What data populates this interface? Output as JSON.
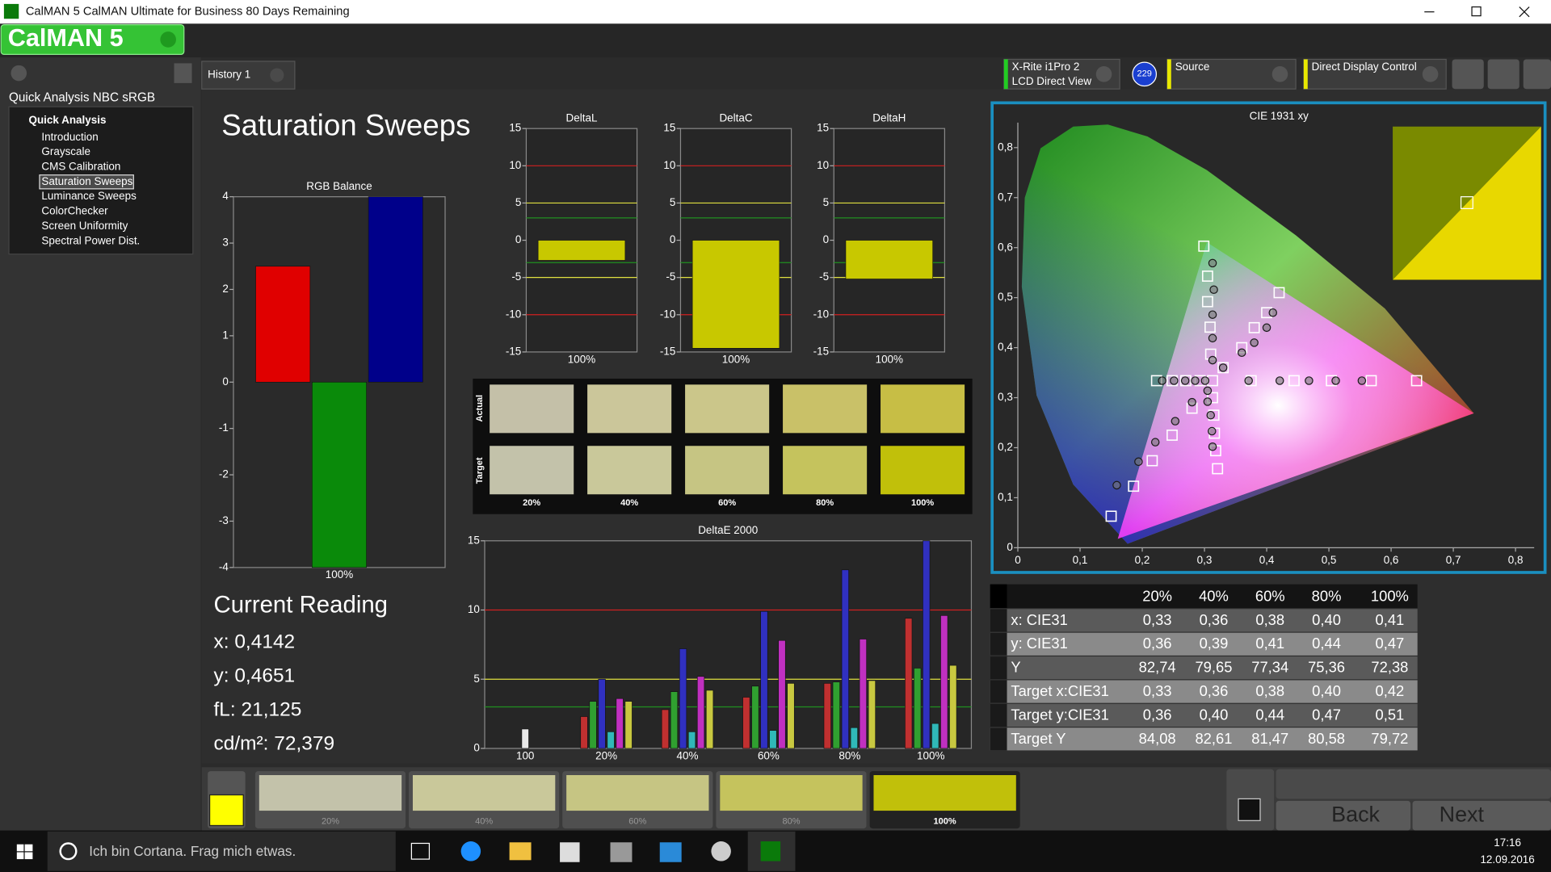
{
  "window": {
    "title": "CalMAN 5 CalMAN Ultimate for Business 80 Days Remaining",
    "logo": "CalMAN 5"
  },
  "tabs": [
    "History 1"
  ],
  "devices": [
    {
      "label": "X-Rite i1Pro 2",
      "sub": "LCD Direct View",
      "badge": "229",
      "color": "#22cc22"
    },
    {
      "label": "Source",
      "color": "#e8e800"
    },
    {
      "label": "Direct Display Control",
      "color": "#e8e800"
    }
  ],
  "sidebar": {
    "title": "Quick Analysis NBC sRGB",
    "root": "Quick Analysis",
    "items": [
      "Introduction",
      "Grayscale",
      "CMS Calibration",
      "Saturation Sweeps",
      "Luminance Sweeps",
      "ColorChecker",
      "Screen Uniformity",
      "Spectral Power Dist."
    ],
    "selected": 3
  },
  "page_title": "Saturation Sweeps",
  "chart_data": [
    {
      "type": "bar",
      "title": "RGB Balance",
      "categories": [
        "100%"
      ],
      "series": [
        {
          "color": "#e00000",
          "values": [
            2.5
          ]
        },
        {
          "color": "#0a8a0a",
          "values": [
            -4
          ]
        },
        {
          "color": "#00008a",
          "values": [
            4
          ]
        }
      ],
      "ylim": [
        -4,
        4
      ],
      "yticks": [
        -4,
        -3,
        -2,
        -1,
        0,
        1,
        2,
        3,
        4
      ]
    },
    {
      "type": "bar",
      "title": "DeltaL",
      "categories": [
        "100%"
      ],
      "series": [
        {
          "color": "#c8c800",
          "values": [
            -2.7
          ]
        }
      ],
      "ylim": [
        -15,
        15
      ],
      "yticks": [
        -15,
        -10,
        -5,
        0,
        5,
        10,
        15
      ],
      "thresholds": [
        {
          "value": 10,
          "color": "#d02020"
        },
        {
          "value": -10,
          "color": "#d02020"
        },
        {
          "value": 5,
          "color": "#e0e040"
        },
        {
          "value": -5,
          "color": "#e0e040"
        },
        {
          "value": 3,
          "color": "#209020"
        },
        {
          "value": -3,
          "color": "#209020"
        }
      ]
    },
    {
      "type": "bar",
      "title": "DeltaC",
      "categories": [
        "100%"
      ],
      "series": [
        {
          "color": "#c8c800",
          "values": [
            -14.5
          ]
        }
      ],
      "ylim": [
        -15,
        15
      ],
      "yticks": [
        -15,
        -10,
        -5,
        0,
        5,
        10,
        15
      ],
      "thresholds": [
        {
          "value": 10,
          "color": "#d02020"
        },
        {
          "value": -10,
          "color": "#d02020"
        },
        {
          "value": 5,
          "color": "#e0e040"
        },
        {
          "value": -5,
          "color": "#e0e040"
        },
        {
          "value": 3,
          "color": "#209020"
        },
        {
          "value": -3,
          "color": "#209020"
        }
      ]
    },
    {
      "type": "bar",
      "title": "DeltaH",
      "categories": [
        "100%"
      ],
      "series": [
        {
          "color": "#c8c800",
          "values": [
            -5.2
          ]
        }
      ],
      "ylim": [
        -15,
        15
      ],
      "yticks": [
        -15,
        -10,
        -5,
        0,
        5,
        10,
        15
      ],
      "thresholds": [
        {
          "value": 10,
          "color": "#d02020"
        },
        {
          "value": -10,
          "color": "#d02020"
        },
        {
          "value": 5,
          "color": "#e0e040"
        },
        {
          "value": -5,
          "color": "#e0e040"
        },
        {
          "value": 3,
          "color": "#209020"
        },
        {
          "value": -3,
          "color": "#209020"
        }
      ]
    },
    {
      "type": "bar",
      "title": "DeltaE 2000",
      "categories": [
        "100",
        "20%",
        "40%",
        "60%",
        "80%",
        "100%"
      ],
      "series": [
        {
          "color": "#e8e8e8",
          "values": [
            1.4,
            null,
            null,
            null,
            null,
            null
          ]
        },
        {
          "color": "#c03030",
          "values": [
            null,
            2.3,
            2.8,
            3.7,
            4.7,
            9.4
          ]
        },
        {
          "color": "#30a030",
          "values": [
            null,
            3.4,
            4.1,
            4.5,
            4.8,
            5.8
          ]
        },
        {
          "color": "#3030c0",
          "values": [
            null,
            5.0,
            7.2,
            9.9,
            12.9,
            15.0
          ]
        },
        {
          "color": "#30b8b8",
          "values": [
            null,
            1.2,
            1.2,
            1.3,
            1.5,
            1.8
          ]
        },
        {
          "color": "#c030c0",
          "values": [
            null,
            3.6,
            5.2,
            7.8,
            7.9,
            9.6
          ]
        },
        {
          "color": "#c8c840",
          "values": [
            null,
            3.4,
            4.2,
            4.7,
            4.9,
            6.0
          ]
        }
      ],
      "ylim": [
        0,
        15
      ],
      "yticks": [
        0,
        5,
        10,
        15
      ],
      "thresholds": [
        {
          "value": 10,
          "color": "#d02020"
        },
        {
          "value": 5,
          "color": "#e0e040"
        },
        {
          "value": 3,
          "color": "#209020"
        }
      ]
    },
    {
      "type": "scatter",
      "title": "CIE 1931 xy",
      "xlim": [
        0,
        0.83
      ],
      "ylim": [
        0,
        0.85
      ],
      "xticks": [
        0,
        {
          "value": 0.1,
          "label": "0,1"
        },
        {
          "value": 0.2,
          "label": "0,2"
        },
        {
          "value": 0.3,
          "label": "0,3"
        },
        {
          "value": 0.4,
          "label": "0,4"
        },
        {
          "value": 0.5,
          "label": "0,5"
        },
        {
          "value": 0.6,
          "label": "0,6"
        },
        {
          "value": 0.7,
          "label": "0,7"
        },
        {
          "value": 0.8,
          "label": "0,8"
        }
      ],
      "yticks": [
        0,
        {
          "value": 0.1,
          "label": "0,1"
        },
        {
          "value": 0.2,
          "label": "0,2"
        },
        {
          "value": 0.3,
          "label": "0,3"
        },
        {
          "value": 0.4,
          "label": "0,4"
        },
        {
          "value": 0.5,
          "label": "0,5"
        },
        {
          "value": 0.6,
          "label": "0,6"
        },
        {
          "value": 0.7,
          "label": "0,7"
        },
        {
          "value": 0.8,
          "label": "0,8"
        }
      ],
      "series": [
        {
          "marker": "square",
          "color": "#ffffff",
          "x": [
            0.15,
            0.186,
            0.216,
            0.248,
            0.28,
            0.299,
            0.305,
            0.305,
            0.309,
            0.31,
            0.641,
            0.568,
            0.504,
            0.444,
            0.375,
            0.33,
            0.36,
            0.38,
            0.4,
            0.42,
            0.223,
            0.248,
            0.27,
            0.293,
            0.321,
            0.318,
            0.316,
            0.315,
            0.313,
            0.313
          ],
          "y": [
            0.063,
            0.123,
            0.174,
            0.225,
            0.279,
            0.603,
            0.543,
            0.492,
            0.441,
            0.387,
            0.334,
            0.334,
            0.334,
            0.334,
            0.334,
            0.36,
            0.4,
            0.44,
            0.47,
            0.51,
            0.334,
            0.334,
            0.334,
            0.334,
            0.158,
            0.194,
            0.229,
            0.265,
            0.3,
            0.334
          ]
        },
        {
          "marker": "circle",
          "color": "#1a1a1a",
          "x": [
            0.159,
            0.194,
            0.221,
            0.253,
            0.28,
            0.313,
            0.315,
            0.313,
            0.313,
            0.313,
            0.371,
            0.421,
            0.468,
            0.511,
            0.553,
            0.33,
            0.36,
            0.38,
            0.4,
            0.41,
            0.232,
            0.251,
            0.269,
            0.285,
            0.301,
            0.313,
            0.312,
            0.31,
            0.305,
            0.305
          ],
          "y": [
            0.125,
            0.172,
            0.211,
            0.253,
            0.291,
            0.569,
            0.516,
            0.466,
            0.419,
            0.375,
            0.334,
            0.334,
            0.334,
            0.334,
            0.334,
            0.36,
            0.39,
            0.41,
            0.44,
            0.47,
            0.334,
            0.334,
            0.334,
            0.334,
            0.334,
            0.202,
            0.233,
            0.265,
            0.292,
            0.314
          ]
        }
      ]
    }
  ],
  "swatches": {
    "row_labels": [
      "Actual",
      "Target"
    ],
    "columns": [
      "20%",
      "40%",
      "60%",
      "80%",
      "100%"
    ],
    "actual": [
      "#c4c0a8",
      "#cbc69a",
      "#cbc68a",
      "#c9c168",
      "#c7be45"
    ],
    "target": [
      "#c3c2aa",
      "#c9c89a",
      "#c6c583",
      "#c5c35d",
      "#c1c00a"
    ]
  },
  "current_reading": {
    "title": "Current Reading",
    "lines": [
      "x: 0,4142",
      "y: 0,4651",
      "fL: 21,125",
      "cd/m²: 72,379"
    ]
  },
  "table": {
    "header": [
      "20%",
      "40%",
      "60%",
      "80%",
      "100%"
    ],
    "rows": [
      [
        "x: CIE31",
        "0,33",
        "0,36",
        "0,38",
        "0,40",
        "0,41"
      ],
      [
        "y: CIE31",
        "0,36",
        "0,39",
        "0,41",
        "0,44",
        "0,47"
      ],
      [
        "Y",
        "82,74",
        "79,65",
        "77,34",
        "75,36",
        "72,38"
      ],
      [
        "Target x:CIE31",
        "0,33",
        "0,36",
        "0,38",
        "0,40",
        "0,42"
      ],
      [
        "Target y:CIE31",
        "0,36",
        "0,40",
        "0,44",
        "0,47",
        "0,51"
      ],
      [
        "Target Y",
        "84,08",
        "82,61",
        "81,47",
        "80,58",
        "79,72"
      ]
    ]
  },
  "strip": {
    "labels": [
      "20%",
      "40%",
      "60%",
      "80%",
      "100%"
    ],
    "colors": [
      "#c3c2aa",
      "#c9c89a",
      "#c6c583",
      "#c5c35d",
      "#c1c00a"
    ],
    "selected": 4
  },
  "nav": {
    "back": "Back",
    "next": "Next"
  },
  "taskbar": {
    "search": "Ich bin Cortana. Frag mich etwas.",
    "time": "17:16",
    "date": "12.09.2016"
  }
}
